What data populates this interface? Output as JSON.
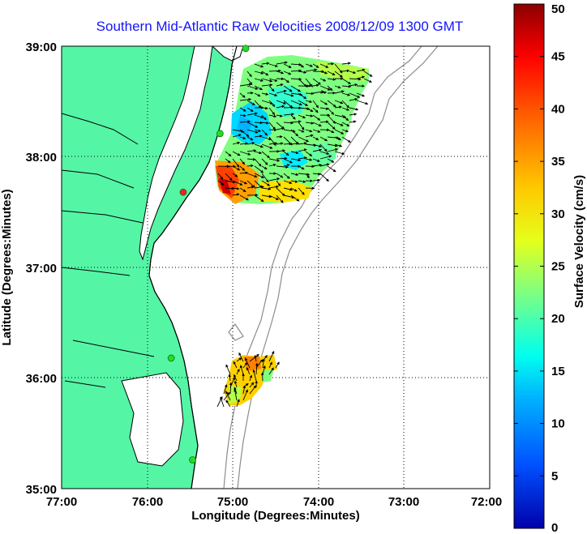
{
  "chart_data": {
    "type": "map",
    "title": "Southern Mid-Atlantic Raw Velocities 2008/12/09 1300 GMT",
    "xlabel": "Longitude (Degrees:Minutes)",
    "ylabel": "Latitude (Degrees:Minutes)",
    "x_ticks": [
      {
        "value": -77,
        "label": "77:00"
      },
      {
        "value": -76,
        "label": "76:00"
      },
      {
        "value": -75,
        "label": "75:00"
      },
      {
        "value": -74,
        "label": "74:00"
      },
      {
        "value": -73,
        "label": "73:00"
      },
      {
        "value": -72,
        "label": "72:00"
      }
    ],
    "y_ticks": [
      {
        "value": 35,
        "label": "35:00"
      },
      {
        "value": 36,
        "label": "36:00"
      },
      {
        "value": 37,
        "label": "37:00"
      },
      {
        "value": 38,
        "label": "38:00"
      },
      {
        "value": 39,
        "label": "39:00"
      }
    ],
    "xlim": [
      -77,
      -72
    ],
    "ylim": [
      35,
      39
    ],
    "grid": "dotted",
    "colorbar": {
      "label": "Surface Velocity (cm/s)",
      "range": [
        0,
        50
      ],
      "ticks": [
        0,
        5,
        10,
        15,
        20,
        25,
        30,
        35,
        40,
        45,
        50
      ],
      "colormap": "jet"
    },
    "colors": {
      "land": "#55f5a6",
      "coast": "#000000",
      "bathymetry": "#8c8c8c",
      "title": "#1414ff",
      "station": "#22dd22",
      "station_red": "#ee2222"
    },
    "stations": [
      {
        "lon": -74.85,
        "lat": 38.98,
        "color": "green"
      },
      {
        "lon": -75.15,
        "lat": 38.21,
        "color": "green"
      },
      {
        "lon": -75.58,
        "lat": 37.68,
        "color": "red"
      },
      {
        "lon": -75.72,
        "lat": 36.18,
        "color": "green"
      },
      {
        "lon": -75.47,
        "lat": 35.26,
        "color": "green"
      }
    ],
    "velocity_fields": [
      {
        "region": "north",
        "lon_range": [
          -75.2,
          -73.4
        ],
        "lat_range": [
          37.6,
          38.88
        ],
        "speed_range_cm_s": [
          10,
          35
        ],
        "dominant_direction": "southeast"
      },
      {
        "region": "south",
        "lon_range": [
          -75.25,
          -74.5
        ],
        "lat_range": [
          35.6,
          36.2
        ],
        "speed_range_cm_s": [
          15,
          33
        ],
        "dominant_direction": "north"
      }
    ]
  }
}
